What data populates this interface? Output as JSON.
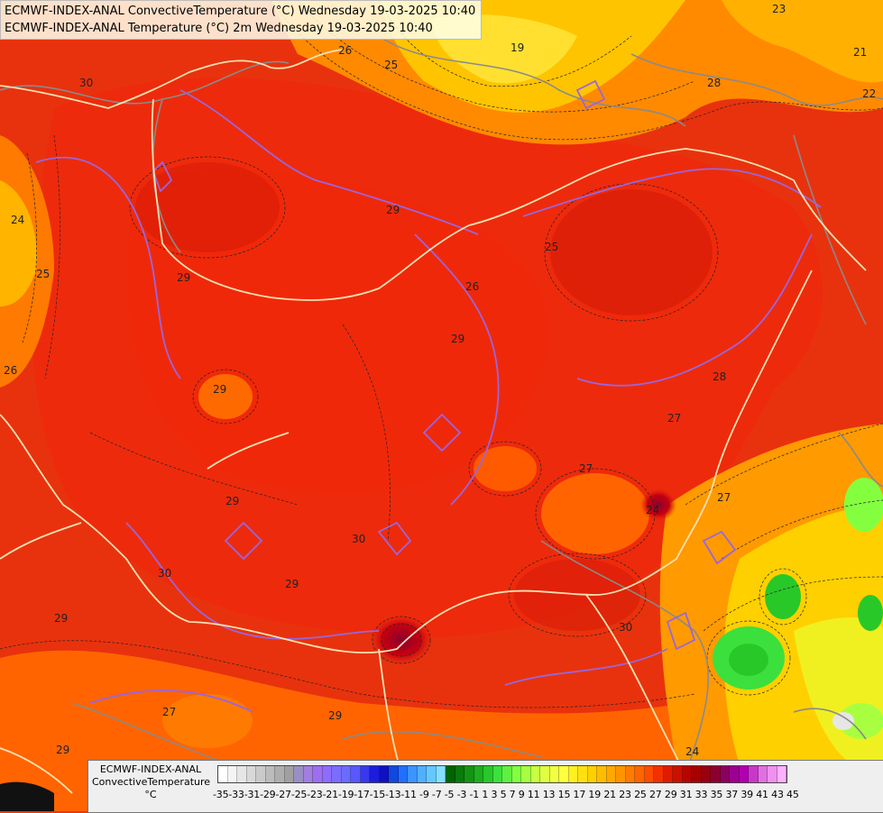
{
  "header": {
    "line1": "ECMWF-INDEX-ANAL ConvectiveTemperature (°C) Wednesday 19-03-2025 10:40",
    "line2": "ECMWF-INDEX-ANAL Temperature (°C) 2m Wednesday 19-03-2025 10:40"
  },
  "legend": {
    "model": "ECMWF-INDEX-ANAL",
    "parameter": "ConvectiveTemperature",
    "unit": "°C",
    "ticks": "-35-33-31-29-27-25-23-21-19-17-15-13-11 -9 -7 -5 -3 -1 1 3 5 7 9 11 13 15 17 19 21 23 25 27 29 31 33 35 37 39 41 43 45",
    "colors": [
      "#ffffff",
      "#f4f4f4",
      "#e6e6e6",
      "#d8d8d8",
      "#cacaca",
      "#bcbcbc",
      "#aeaeae",
      "#a0a0a0",
      "#9a8fc4",
      "#a27ee0",
      "#9c6ef0",
      "#8e6cff",
      "#7c6cff",
      "#6a6cff",
      "#5858ff",
      "#3838f0",
      "#1c1cdc",
      "#1010c0",
      "#1048e0",
      "#2070ff",
      "#3c94ff",
      "#50b0ff",
      "#64c8ff",
      "#84e0ff",
      "#006400",
      "#0a7a0a",
      "#149414",
      "#1eae1e",
      "#28c828",
      "#3ce03c",
      "#60f040",
      "#84ff40",
      "#a8ff40",
      "#c8ff40",
      "#e0ff40",
      "#f4ff40",
      "#ffff40",
      "#fff020",
      "#ffe010",
      "#ffd000",
      "#ffbc00",
      "#ffa800",
      "#ff9400",
      "#ff7c00",
      "#ff6400",
      "#ff4c00",
      "#f43000",
      "#e01c00",
      "#cc1000",
      "#b80400",
      "#a80000",
      "#980010",
      "#8c0030",
      "#8c0060",
      "#9c0090",
      "#b000b0",
      "#c838c8",
      "#e070e0",
      "#f090f0",
      "#ffb0ff"
    ]
  },
  "contour_labels": [
    "19",
    "23",
    "21",
    "25",
    "26",
    "28",
    "29",
    "30",
    "22",
    "24",
    "25",
    "26",
    "29",
    "29",
    "29",
    "30",
    "30",
    "29",
    "28",
    "27",
    "27",
    "29",
    "27",
    "29",
    "29",
    "30",
    "26",
    "25",
    "29",
    "24",
    "27",
    "24"
  ]
}
